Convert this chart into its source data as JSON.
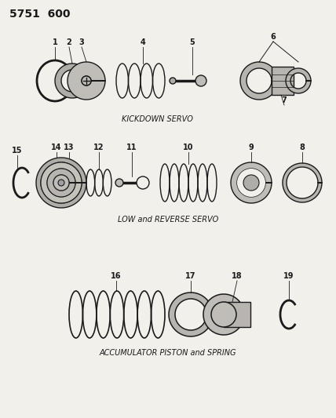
{
  "title": "5751  600",
  "bg_color": "#f2f0eb",
  "line_color": "#1a1a1a",
  "text_color": "#1a1a1a",
  "section1_label": "KICKDOWN SERVO",
  "section2_label": "LOW and REVERSE SERVO",
  "section3_label": "ACCUMULATOR PISTON and SPRING",
  "figsize": [
    4.28,
    5.33
  ],
  "dpi": 100
}
